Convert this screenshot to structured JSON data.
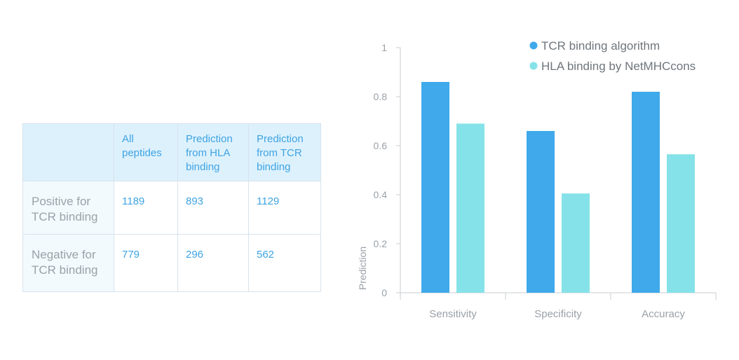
{
  "table": {
    "headers": [
      "",
      "All peptides",
      "Prediction from HLA binding",
      "Prediction from TCR binding"
    ],
    "rows": [
      {
        "label": "Positive for TCR binding",
        "values": [
          "1189",
          "893",
          "1129"
        ]
      },
      {
        "label": "Negative for TCR binding",
        "values": [
          "779",
          "296",
          "562"
        ]
      }
    ]
  },
  "chart_data": {
    "type": "bar",
    "categories": [
      "Sensitivity",
      "Specificity",
      "Accuracy"
    ],
    "series": [
      {
        "name": "TCR binding algorithm",
        "values": [
          0.86,
          0.66,
          0.82
        ],
        "color": "#3fa9eb"
      },
      {
        "name": "HLA binding by NetMHCcons",
        "values": [
          0.69,
          0.405,
          0.565
        ],
        "color": "#85e2e8"
      }
    ],
    "ylabel": "Prediction",
    "xlabel": "",
    "ylim": [
      0,
      1
    ],
    "yticks": [
      "0",
      "0.2",
      "0.4",
      "0.6",
      "0.8",
      "1"
    ],
    "grid": false,
    "legend_position": "top-right"
  }
}
